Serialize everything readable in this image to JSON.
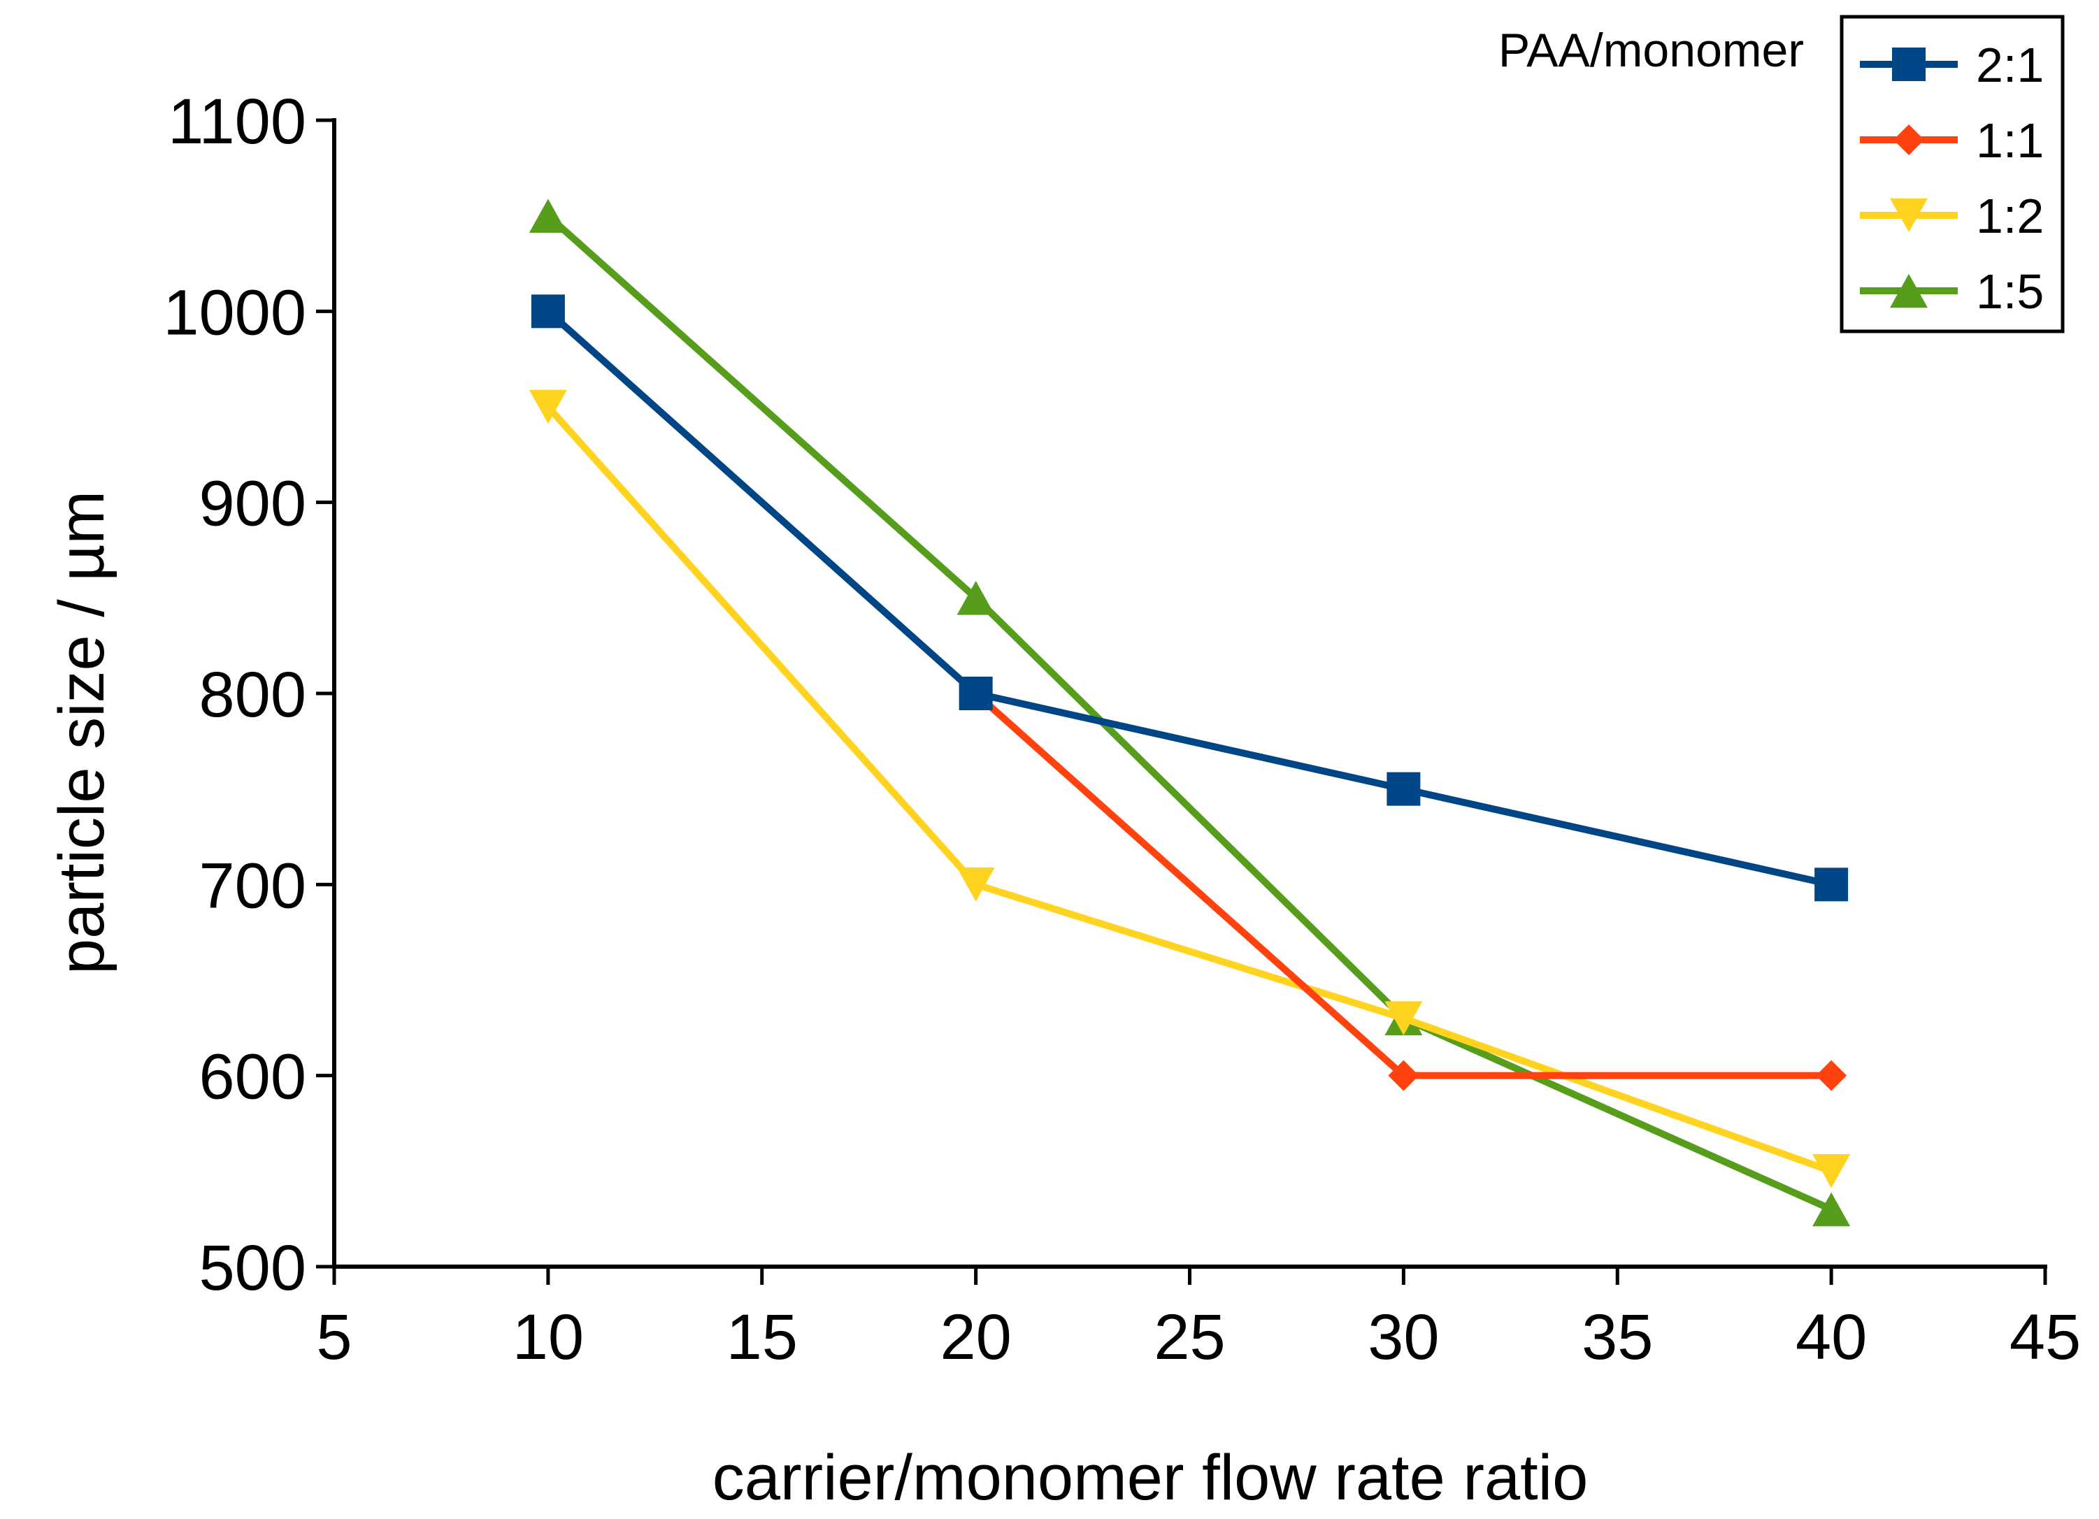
{
  "chart_data": {
    "type": "line",
    "title": "",
    "xlabel": "carrier/monomer flow rate ratio",
    "ylabel": "particle size / µm",
    "xlim": [
      5,
      45
    ],
    "ylim": [
      500,
      1100
    ],
    "xticks": [
      5,
      10,
      15,
      20,
      25,
      30,
      35,
      40,
      45
    ],
    "yticks": [
      500,
      600,
      700,
      800,
      900,
      1000,
      1100
    ],
    "grid": false,
    "legend": {
      "title": "PAA/monomer",
      "placement": "top-right"
    },
    "x": [
      10,
      20,
      30,
      40
    ],
    "series": [
      {
        "name": "2:1",
        "color": "#004586",
        "marker": "square",
        "values": [
          1000,
          800,
          750,
          700
        ]
      },
      {
        "name": "1:1",
        "color": "#ff420e",
        "marker": "diamond",
        "values": [
          null,
          800,
          600,
          600
        ]
      },
      {
        "name": "1:2",
        "color": "#ffd320",
        "marker": "triangle-down",
        "values": [
          950,
          700,
          630,
          550
        ]
      },
      {
        "name": "1:5",
        "color": "#579d1c",
        "marker": "triangle-up",
        "values": [
          1050,
          850,
          630,
          530
        ]
      }
    ]
  }
}
